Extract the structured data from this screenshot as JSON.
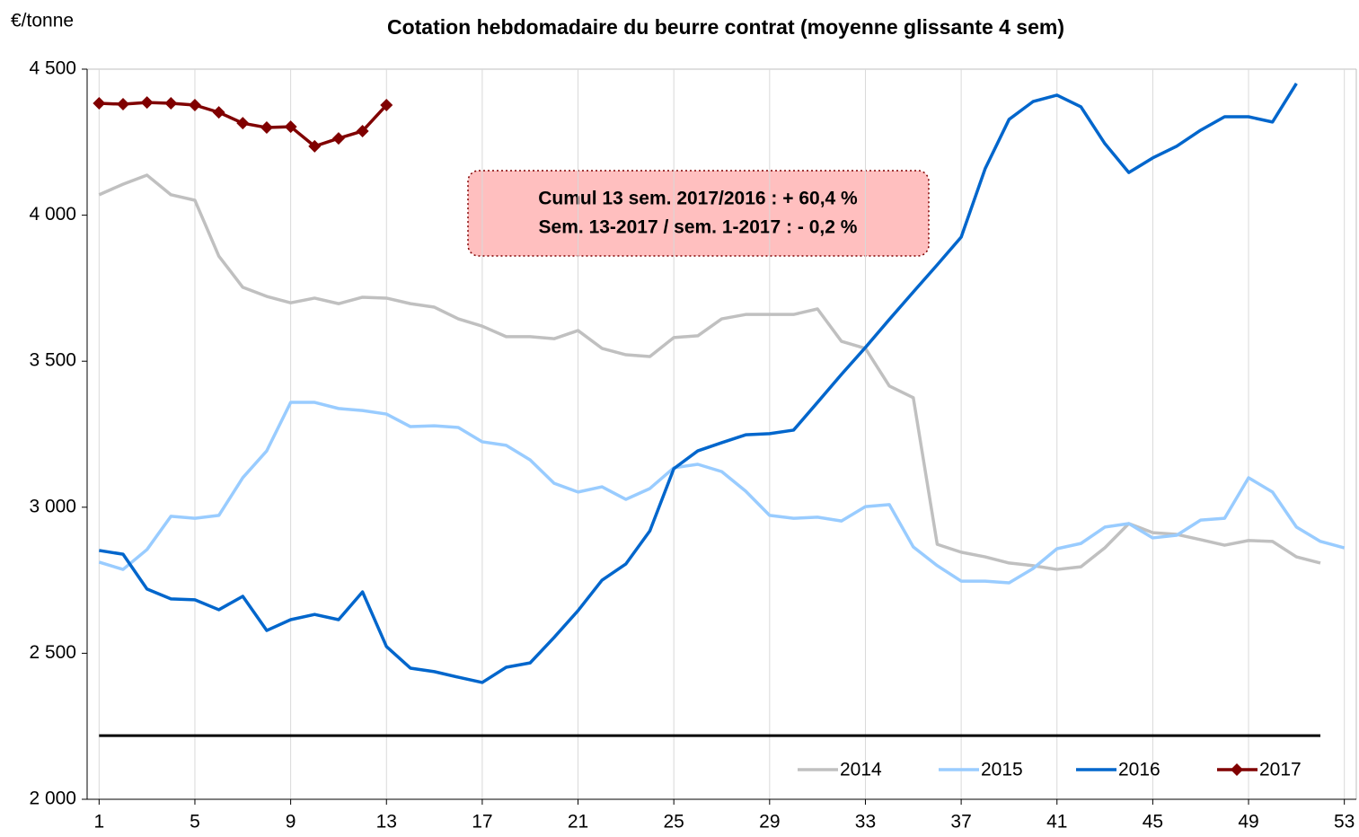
{
  "chart_data": {
    "type": "line",
    "title": "Cotation hebdomadaire du beurre contrat (moyenne glissante 4 sem)",
    "y_label": "€/tonne",
    "annotation": [
      "Cumul 13 sem. 2017/2016 : + 60,4 %",
      "Sem. 13-2017 / sem. 1-2017 : - 0,2 %"
    ],
    "x": [
      1,
      2,
      3,
      4,
      5,
      6,
      7,
      8,
      9,
      10,
      11,
      12,
      13,
      14,
      15,
      16,
      17,
      18,
      19,
      20,
      21,
      22,
      23,
      24,
      25,
      26,
      27,
      28,
      29,
      30,
      31,
      32,
      33,
      34,
      35,
      36,
      37,
      38,
      39,
      40,
      41,
      42,
      43,
      44,
      45,
      46,
      47,
      48,
      49,
      50,
      51,
      52,
      53
    ],
    "xlim": [
      0.5,
      53.5
    ],
    "xticks": [
      1,
      5,
      9,
      13,
      17,
      21,
      25,
      29,
      33,
      37,
      41,
      45,
      49,
      53
    ],
    "ylim": [
      2000,
      4500
    ],
    "yticks": [
      {
        "value": 2000,
        "label": "2 000"
      },
      {
        "value": 2500,
        "label": "2 500"
      },
      {
        "value": 3000,
        "label": "3 000"
      },
      {
        "value": 3500,
        "label": "3 500"
      },
      {
        "value": 4000,
        "label": "4 000"
      },
      {
        "value": 4500,
        "label": "4 500"
      }
    ],
    "grid": "x",
    "legend": "bottom-right",
    "reference_line": {
      "value": 2218,
      "color": "#000000"
    },
    "series": [
      {
        "name": "2014",
        "color": "#c0c0c0",
        "values": [
          4070,
          4106,
          4137,
          4070,
          4051,
          3860,
          3753,
          3722,
          3700,
          3716,
          3697,
          3719,
          3716,
          3697,
          3685,
          3645,
          3620,
          3584,
          3584,
          3577,
          3605,
          3544,
          3522,
          3516,
          3581,
          3587,
          3645,
          3660,
          3660,
          3660,
          3679,
          3568,
          3544,
          3415,
          3375,
          2873,
          2846,
          2830,
          2809,
          2800,
          2787,
          2796,
          2861,
          2944,
          2913,
          2907,
          2889,
          2870,
          2886,
          2883,
          2830,
          2809,
          null
        ]
      },
      {
        "name": "2015",
        "color": "#99ccff",
        "values": [
          2812,
          2787,
          2855,
          2969,
          2962,
          2972,
          3101,
          3193,
          3359,
          3359,
          3338,
          3331,
          3319,
          3276,
          3279,
          3273,
          3224,
          3212,
          3162,
          3082,
          3052,
          3070,
          3027,
          3064,
          3135,
          3147,
          3122,
          3055,
          2972,
          2962,
          2966,
          2953,
          3002,
          3009,
          2864,
          2800,
          2747,
          2747,
          2741,
          2790,
          2858,
          2876,
          2932,
          2944,
          2895,
          2904,
          2956,
          2962,
          3101,
          3052,
          2932,
          2883,
          2861
        ]
      },
      {
        "name": "2016",
        "color": "#0066cc",
        "values": [
          2852,
          2839,
          2720,
          2686,
          2683,
          2649,
          2695,
          2578,
          2615,
          2633,
          2615,
          2710,
          2523,
          2449,
          2437,
          2418,
          2400,
          2452,
          2467,
          2554,
          2646,
          2750,
          2806,
          2919,
          3132,
          3193,
          3221,
          3248,
          3252,
          3264,
          3359,
          3455,
          3547,
          3643,
          3737,
          3830,
          3925,
          4159,
          4328,
          4389,
          4411,
          4371,
          4245,
          4146,
          4196,
          4236,
          4291,
          4337,
          4337,
          4319,
          4451,
          null,
          null
        ]
      },
      {
        "name": "2017",
        "color": "#800000",
        "marker": "diamond",
        "values": [
          4383,
          4380,
          4386,
          4383,
          4377,
          4352,
          4315,
          4300,
          4303,
          4236,
          4263,
          4288,
          4377,
          null,
          null,
          null,
          null,
          null,
          null,
          null,
          null,
          null,
          null,
          null,
          null,
          null,
          null,
          null,
          null,
          null,
          null,
          null,
          null,
          null,
          null,
          null,
          null,
          null,
          null,
          null,
          null,
          null,
          null,
          null,
          null,
          null,
          null,
          null,
          null,
          null,
          null,
          null,
          null
        ]
      }
    ]
  }
}
